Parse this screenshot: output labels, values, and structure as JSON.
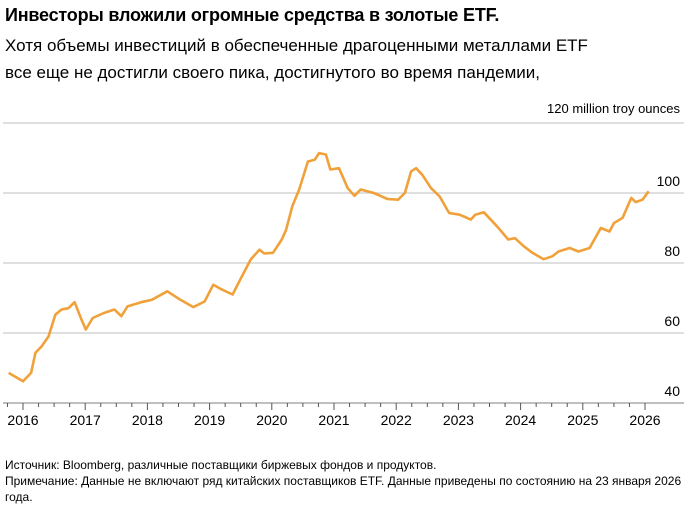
{
  "title": "Инвесторы вложили огромные средства в золотые ETF.",
  "subtitle_lines": [
    "Хотя объемы инвестиций в обеспеченные драгоценными металлами ETF",
    "все еще не достигли своего пика, достигнутого во время пандемии,"
  ],
  "source": "Источник: Bloomberg, различные поставщики биржевых фондов и продуктов.",
  "note": "Примечание: Данные не включают ряд китайских поставщиков ETF. Данные приведены по состоянию на 23 января 2026 года.",
  "colors": {
    "line": "#f0a13a",
    "grid": "#cccccc",
    "axis": "#999999"
  },
  "chart_data": {
    "type": "line",
    "ylabel": "120 million troy ounces",
    "ylim": [
      40,
      120
    ],
    "yticks": [
      "120 million troy ounces",
      "100",
      "80",
      "60",
      "40"
    ],
    "ytick_values": [
      120,
      100,
      80,
      60,
      40
    ],
    "xlim": [
      2015.75,
      2026.1
    ],
    "xticks": [
      "2016",
      "2017",
      "2018",
      "2019",
      "2020",
      "2021",
      "2022",
      "2023",
      "2024",
      "2025",
      "2026"
    ],
    "grid": true,
    "x": [
      2015.77,
      2016.0,
      2016.13,
      2016.2,
      2016.3,
      2016.41,
      2016.52,
      2016.62,
      2016.73,
      2016.83,
      2016.94,
      2017.01,
      2017.12,
      2017.3,
      2017.47,
      2017.58,
      2017.68,
      2017.9,
      2018.07,
      2018.32,
      2018.53,
      2018.74,
      2018.92,
      2019.06,
      2019.2,
      2019.37,
      2019.49,
      2019.66,
      2019.8,
      2019.88,
      2020.02,
      2020.16,
      2020.23,
      2020.33,
      2020.44,
      2020.58,
      2020.69,
      2020.76,
      2020.87,
      2020.94,
      2021.08,
      2021.22,
      2021.33,
      2021.43,
      2021.64,
      2021.86,
      2022.03,
      2022.14,
      2022.24,
      2022.32,
      2022.42,
      2022.56,
      2022.7,
      2022.85,
      2023.02,
      2023.2,
      2023.27,
      2023.41,
      2023.62,
      2023.8,
      2023.91,
      2024.05,
      2024.19,
      2024.37,
      2024.51,
      2024.61,
      2024.79,
      2024.93,
      2025.11,
      2025.29,
      2025.43,
      2025.5,
      2025.64,
      2025.78,
      2025.85,
      2025.96,
      2026.06
    ],
    "values": [
      48.6,
      46.2,
      48.6,
      54.3,
      56.2,
      59,
      65.2,
      66.7,
      67.1,
      68.8,
      63.8,
      61,
      64.3,
      65.7,
      66.7,
      64.8,
      67.6,
      68.8,
      69.5,
      71.9,
      69.5,
      67.4,
      69,
      73.8,
      72.4,
      71,
      75.2,
      81,
      83.8,
      82.7,
      82.9,
      86.7,
      89.5,
      96.2,
      101,
      109,
      109.5,
      111.4,
      111,
      106.7,
      107.1,
      101.4,
      99.2,
      101,
      100,
      98.3,
      98.1,
      100,
      106.2,
      107.1,
      105.2,
      101.4,
      99,
      94.3,
      93.8,
      92.4,
      93.8,
      94.5,
      90.5,
      86.7,
      87.1,
      84.8,
      82.9,
      81.1,
      81.9,
      83.3,
      84.3,
      83.3,
      84.3,
      90,
      89,
      91.4,
      92.9,
      98.6,
      97.4,
      98.1,
      100.5
    ]
  }
}
